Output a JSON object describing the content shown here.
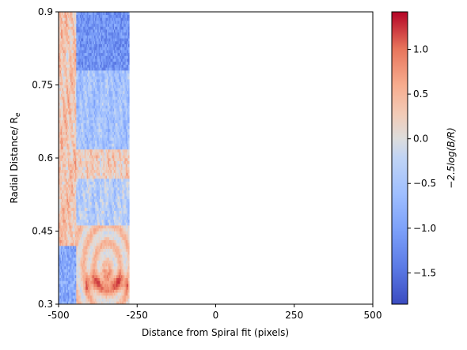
{
  "chart_data": {
    "type": "heatmap",
    "xlabel": "Distance from Spiral fit (pixels)",
    "ylabel": "Radial Distance/ R",
    "ylabel_subscript": "e",
    "xlim": [
      -500,
      500
    ],
    "ylim": [
      0.3,
      0.9
    ],
    "xticks": [
      -500,
      -250,
      0,
      250,
      500
    ],
    "xtick_labels": [
      "-500",
      "-250",
      "0",
      "250",
      "500"
    ],
    "yticks": [
      0.3,
      0.45,
      0.6,
      0.75,
      0.9
    ],
    "ytick_labels": [
      "0.3",
      "0.45",
      "0.6",
      "0.75",
      "0.9"
    ],
    "data_x_range": [
      -500,
      -275
    ],
    "strip_boundary_x": -445,
    "colormap": "coolwarm",
    "colorbar": {
      "label": "−2.5log(B/R)",
      "min": -1.85,
      "max": 1.42,
      "ticks": [
        -1.5,
        -1.0,
        -0.5,
        0.0,
        0.5,
        1.0
      ],
      "tick_labels": [
        "−1.5",
        "−1.0",
        "−0.5",
        "0.0",
        "0.5",
        "1.0"
      ]
    },
    "colors": {
      "low": "#3b4cc0",
      "mid": "#dddddd",
      "high": "#b40426"
    }
  }
}
